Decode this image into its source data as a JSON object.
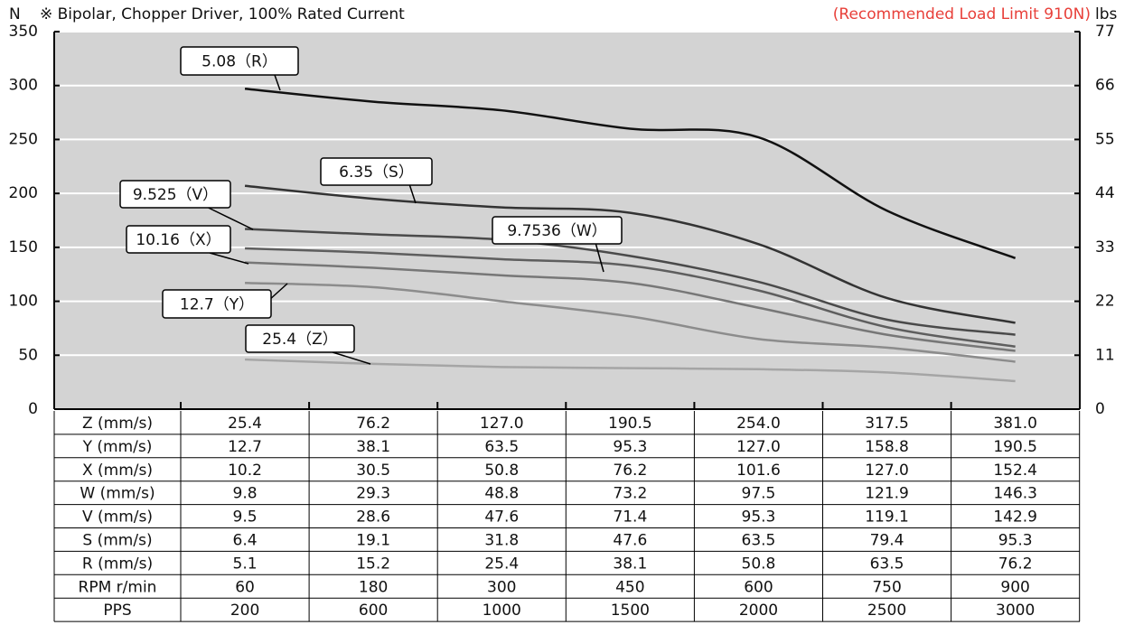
{
  "chart_data": {
    "type": "line",
    "subtitle": "※ Bipolar, Chopper Driver, 100% Rated Current",
    "annotation": "(Recommended Load Limit 910N)",
    "ylabel": "N",
    "y2label": "lbs",
    "ylim": [
      0,
      350
    ],
    "yticks": [
      0,
      50,
      100,
      150,
      200,
      250,
      300,
      350
    ],
    "y2lim": [
      0,
      77
    ],
    "y2ticks": [
      0,
      11,
      22,
      33,
      44,
      55,
      66,
      77
    ],
    "grid": true,
    "series": [
      {
        "name": "5.08（R）",
        "color": "#111111",
        "values": [
          297,
          285,
          277,
          260,
          252,
          184,
          140
        ]
      },
      {
        "name": "6.35（S）",
        "color": "#333333",
        "values": [
          207,
          195,
          187,
          182,
          153,
          103,
          80
        ]
      },
      {
        "name": "9.525（V）",
        "color": "#4a4a4a",
        "values": [
          167,
          162,
          157,
          142,
          118,
          83,
          69
        ]
      },
      {
        "name": "9.7536（W）",
        "color": "#5e5e5e",
        "values": [
          149,
          145,
          139,
          133,
          110,
          76,
          58
        ]
      },
      {
        "name": "10.16（X）",
        "color": "#777777",
        "values": [
          136,
          131,
          124,
          117,
          94,
          69,
          54
        ]
      },
      {
        "name": "12.7（Y）",
        "color": "#8c8c8c",
        "values": [
          117,
          113,
          100,
          86,
          65,
          57,
          44
        ]
      },
      {
        "name": "25.4（Z）",
        "color": "#a5a5a5",
        "values": [
          46,
          42,
          39,
          38,
          37,
          34,
          26
        ]
      }
    ]
  },
  "table": {
    "rows": [
      [
        "Z (mm/s)",
        "25.4",
        "76.2",
        "127.0",
        "190.5",
        "254.0",
        "317.5",
        "381.0"
      ],
      [
        "Y (mm/s)",
        "12.7",
        "38.1",
        "63.5",
        "95.3",
        "127.0",
        "158.8",
        "190.5"
      ],
      [
        "X (mm/s)",
        "10.2",
        "30.5",
        "50.8",
        "76.2",
        "101.6",
        "127.0",
        "152.4"
      ],
      [
        "W (mm/s)",
        "9.8",
        "29.3",
        "48.8",
        "73.2",
        "97.5",
        "121.9",
        "146.3"
      ],
      [
        "V (mm/s)",
        "9.5",
        "28.6",
        "47.6",
        "71.4",
        "95.3",
        "119.1",
        "142.9"
      ],
      [
        "S (mm/s)",
        "6.4",
        "19.1",
        "31.8",
        "47.6",
        "63.5",
        "79.4",
        "95.3"
      ],
      [
        "R (mm/s)",
        "5.1",
        "15.2",
        "25.4",
        "38.1",
        "50.8",
        "63.5",
        "76.2"
      ],
      [
        "RPM r/min",
        "60",
        "180",
        "300",
        "450",
        "600",
        "750",
        "900"
      ],
      [
        "PPS",
        "200",
        "600",
        "1000",
        "1500",
        "2000",
        "2500",
        "3000"
      ]
    ]
  }
}
